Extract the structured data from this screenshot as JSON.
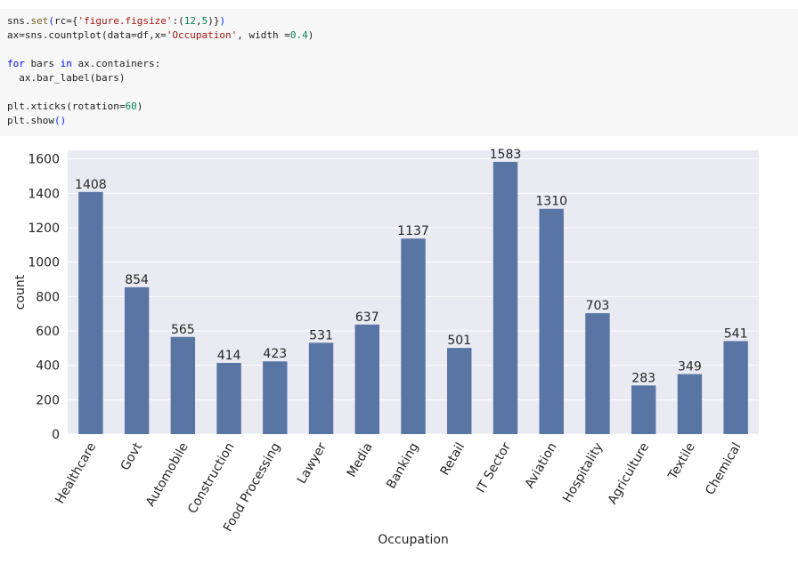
{
  "code": {
    "lines": [
      [
        {
          "t": "sns."
        },
        {
          "t": "set",
          "c": "fn"
        },
        {
          "t": "(",
          "c": "p"
        },
        {
          "t": "rc={"
        },
        {
          "t": "'figure.figsize'",
          "c": "str"
        },
        {
          "t": ":("
        },
        {
          "t": "12",
          "c": "num"
        },
        {
          "t": ","
        },
        {
          "t": "5",
          "c": "num"
        },
        {
          "t": ")}"
        },
        {
          "t": ")",
          "c": "p"
        }
      ],
      [
        {
          "t": "ax=sns.countplot(data=df,x="
        },
        {
          "t": "'Occupation'",
          "c": "str"
        },
        {
          "t": ", width ="
        },
        {
          "t": "0.4",
          "c": "num"
        },
        {
          "t": ")"
        }
      ],
      [],
      [
        {
          "t": "for",
          "c": "kw"
        },
        {
          "t": " bars "
        },
        {
          "t": "in",
          "c": "kw"
        },
        {
          "t": " ax.containers:"
        }
      ],
      [
        {
          "t": "  ax.bar_label(bars)"
        }
      ],
      [],
      [
        {
          "t": "plt.xticks(rotation="
        },
        {
          "t": "60",
          "c": "num"
        },
        {
          "t": ")"
        }
      ],
      [
        {
          "t": "plt.show"
        },
        {
          "t": "()",
          "c": "p"
        }
      ]
    ]
  },
  "chart_data": {
    "type": "bar",
    "categories": [
      "Healthcare",
      "Govt",
      "Automobile",
      "Construction",
      "Food Processing",
      "Lawyer",
      "Media",
      "Banking",
      "Retail",
      "IT Sector",
      "Aviation",
      "Hospitality",
      "Agriculture",
      "Textile",
      "Chemical"
    ],
    "values": [
      1408,
      854,
      565,
      414,
      423,
      531,
      637,
      1137,
      501,
      1583,
      1310,
      703,
      283,
      349,
      541
    ],
    "data_labels": [
      "1408",
      "854",
      "565",
      "414",
      "423",
      "531",
      "637",
      "1137",
      "501",
      "1583",
      "1310",
      "703",
      "283",
      "349",
      "541"
    ],
    "xlabel": "Occupation",
    "ylabel": "count",
    "ylim": [
      0,
      1650
    ],
    "yticks": [
      0,
      200,
      400,
      600,
      800,
      1000,
      1200,
      1400,
      1600
    ],
    "xtick_rotation": 60,
    "grid": true,
    "colors": {
      "bar": "#5975a4",
      "background": "#eaeaf2",
      "grid": "#ffffff",
      "text": "#262626"
    }
  }
}
